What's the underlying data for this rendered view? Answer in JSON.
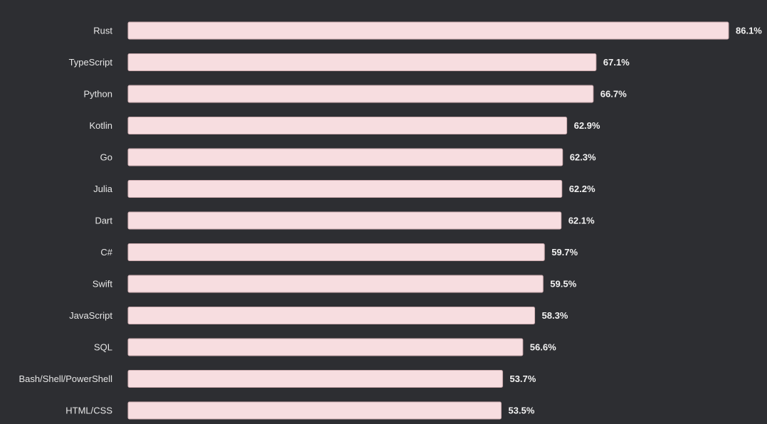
{
  "chart_data": {
    "type": "bar",
    "orientation": "horizontal",
    "categories": [
      "Rust",
      "TypeScript",
      "Python",
      "Kotlin",
      "Go",
      "Julia",
      "Dart",
      "C#",
      "Swift",
      "JavaScript",
      "SQL",
      "Bash/Shell/PowerShell",
      "HTML/CSS"
    ],
    "values": [
      86.1,
      67.1,
      66.7,
      62.9,
      62.3,
      62.2,
      62.1,
      59.7,
      59.5,
      58.3,
      56.6,
      53.7,
      53.5
    ],
    "value_labels": [
      "86.1%",
      "67.1%",
      "66.7%",
      "62.9%",
      "62.3%",
      "62.2%",
      "62.1%",
      "59.7%",
      "59.5%",
      "58.3%",
      "56.6%",
      "53.7%",
      "53.5%"
    ],
    "title": "",
    "xlabel": "",
    "ylabel": "",
    "xlim": [
      0,
      86.1
    ],
    "grid": false,
    "legend": "none",
    "bar_color": "#f7dde0",
    "bar_edge_color": "#c9a9ad",
    "background_color": "#2d2e32",
    "label_color": "#e6e6e6",
    "value_label_color": "#f2f2f2"
  }
}
